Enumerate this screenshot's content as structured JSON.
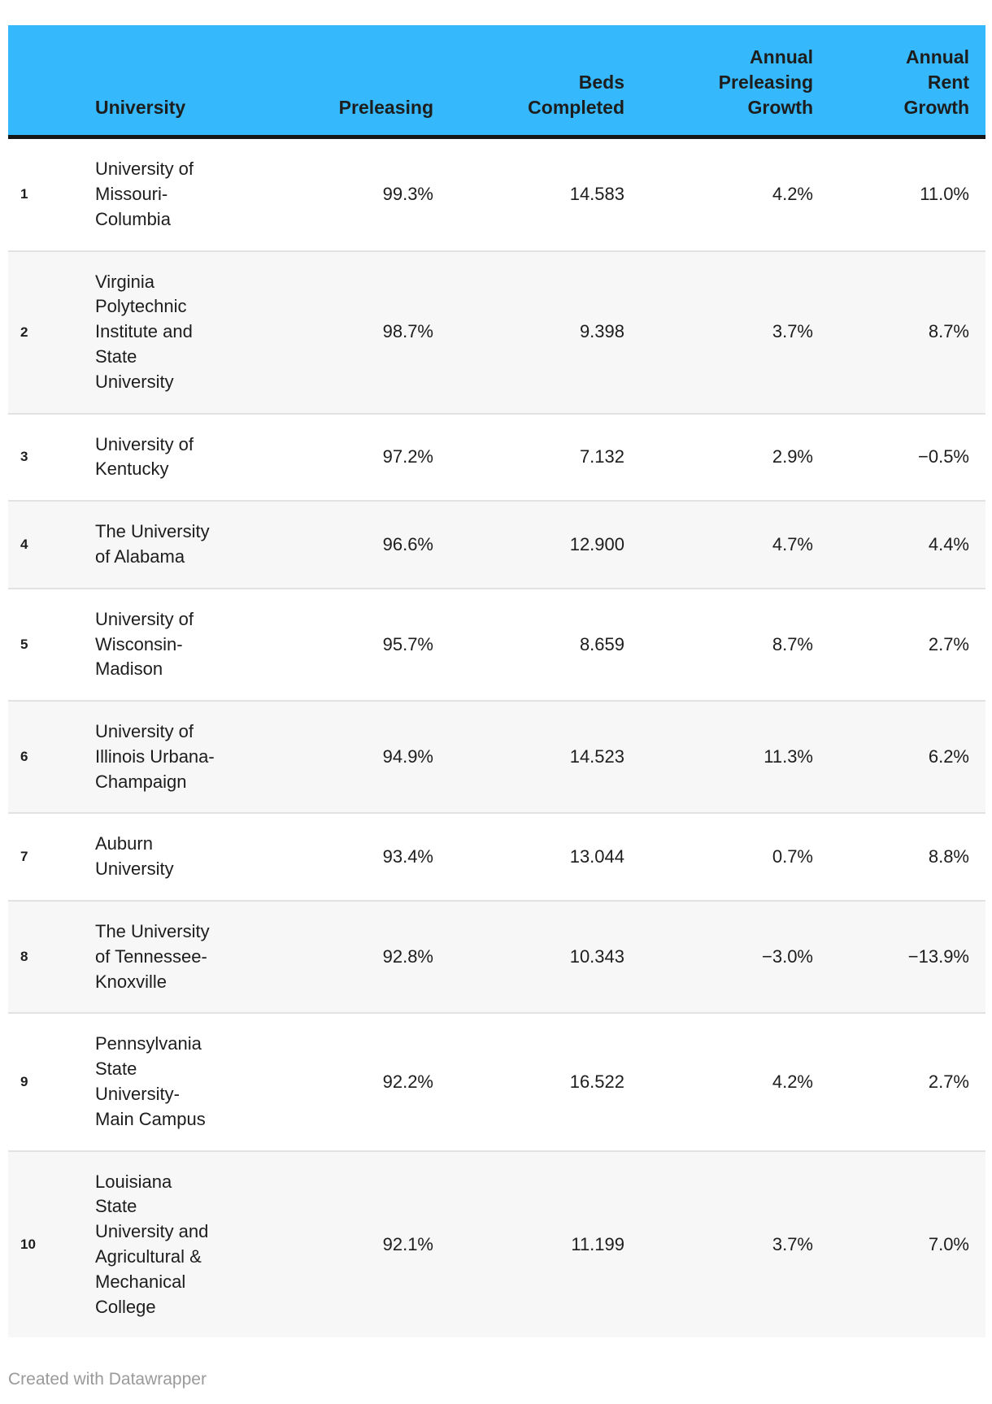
{
  "colors": {
    "header_background": "#35b9fc",
    "header_rule": "#161616",
    "text": "#1d1d1d",
    "stripe": "#f7f7f7",
    "row_border": "#e2e2e2",
    "footer_text": "#9a9a9a"
  },
  "chart_data": {
    "type": "table",
    "title": "",
    "legend_position": "none",
    "layout": {
      "striped_rows": true,
      "numeric_columns_right_aligned": true
    },
    "headers": {
      "rank": "",
      "university": "University",
      "preleasing": "Preleasing",
      "beds_completed": "Beds\nCompleted",
      "annual_preleasing_growth": "Annual\nPreleasing\nGrowth",
      "annual_rent_growth": "Annual\nRent\nGrowth"
    },
    "rows": [
      {
        "rank": "1",
        "university": "University of\nMissouri-\nColumbia",
        "preleasing": "99.3%",
        "beds_completed": "14.583",
        "annual_preleasing_growth": "4.2%",
        "annual_rent_growth": "11.0%"
      },
      {
        "rank": "2",
        "university": "Virginia\nPolytechnic\nInstitute and\nState\nUniversity",
        "preleasing": "98.7%",
        "beds_completed": "9.398",
        "annual_preleasing_growth": "3.7%",
        "annual_rent_growth": "8.7%"
      },
      {
        "rank": "3",
        "university": "University of\nKentucky",
        "preleasing": "97.2%",
        "beds_completed": "7.132",
        "annual_preleasing_growth": "2.9%",
        "annual_rent_growth": "−0.5%"
      },
      {
        "rank": "4",
        "university": "The University\nof Alabama",
        "preleasing": "96.6%",
        "beds_completed": "12.900",
        "annual_preleasing_growth": "4.7%",
        "annual_rent_growth": "4.4%"
      },
      {
        "rank": "5",
        "university": "University of\nWisconsin-\nMadison",
        "preleasing": "95.7%",
        "beds_completed": "8.659",
        "annual_preleasing_growth": "8.7%",
        "annual_rent_growth": "2.7%"
      },
      {
        "rank": "6",
        "university": "University of\nIllinois Urbana-\nChampaign",
        "preleasing": "94.9%",
        "beds_completed": "14.523",
        "annual_preleasing_growth": "11.3%",
        "annual_rent_growth": "6.2%"
      },
      {
        "rank": "7",
        "university": "Auburn\nUniversity",
        "preleasing": "93.4%",
        "beds_completed": "13.044",
        "annual_preleasing_growth": "0.7%",
        "annual_rent_growth": "8.8%"
      },
      {
        "rank": "8",
        "university": "The University\nof Tennessee-\nKnoxville",
        "preleasing": "92.8%",
        "beds_completed": "10.343",
        "annual_preleasing_growth": "−3.0%",
        "annual_rent_growth": "−13.9%"
      },
      {
        "rank": "9",
        "university": "Pennsylvania\nState\nUniversity-\nMain Campus",
        "preleasing": "92.2%",
        "beds_completed": "16.522",
        "annual_preleasing_growth": "4.2%",
        "annual_rent_growth": "2.7%"
      },
      {
        "rank": "10",
        "university": "Louisiana\nState\nUniversity and\nAgricultural &\nMechanical\nCollege",
        "preleasing": "92.1%",
        "beds_completed": "11.199",
        "annual_preleasing_growth": "3.7%",
        "annual_rent_growth": "7.0%"
      }
    ]
  },
  "footer": {
    "credit": "Created with Datawrapper"
  }
}
